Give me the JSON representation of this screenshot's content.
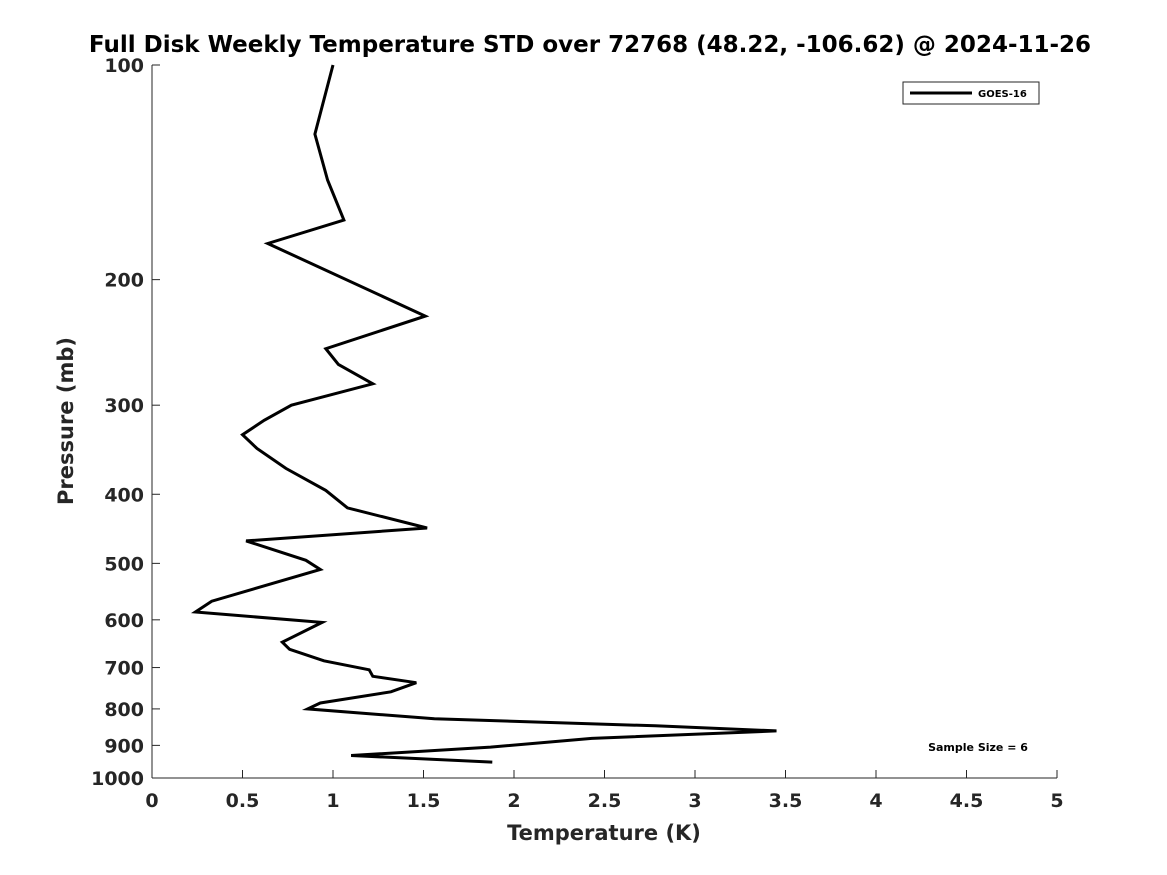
{
  "chart_data": {
    "type": "line",
    "title": "Full Disk Weekly Temperature STD over 72768 (48.22, -106.62) @ 2024-11-26",
    "xlabel": "Temperature (K)",
    "ylabel": "Pressure (mb)",
    "xlim": [
      0,
      5
    ],
    "ylim": [
      100,
      1000
    ],
    "y_scale": "log",
    "y_reversed": true,
    "grid": false,
    "legend_position": "top-right",
    "x_ticks": [
      0,
      0.5,
      1,
      1.5,
      2,
      2.5,
      3,
      3.5,
      4,
      4.5,
      5
    ],
    "x_tick_labels": [
      "0",
      "0.5",
      "1",
      "1.5",
      "2",
      "2.5",
      "3",
      "3.5",
      "4",
      "4.5",
      "5"
    ],
    "y_ticks": [
      100,
      200,
      300,
      400,
      500,
      600,
      700,
      800,
      900,
      1000
    ],
    "y_tick_labels": [
      "100",
      "200",
      "300",
      "400",
      "500",
      "600",
      "700",
      "800",
      "900",
      "1000"
    ],
    "series": [
      {
        "name": "GOES-16",
        "color": "#000000",
        "points": [
          [
            1.0,
            100
          ],
          [
            0.9,
            125
          ],
          [
            0.97,
            145
          ],
          [
            1.06,
            165
          ],
          [
            0.64,
            178
          ],
          [
            1.51,
            225
          ],
          [
            0.96,
            250
          ],
          [
            1.03,
            263
          ],
          [
            1.22,
            280
          ],
          [
            0.77,
            300
          ],
          [
            0.62,
            315
          ],
          [
            0.5,
            330
          ],
          [
            0.58,
            345
          ],
          [
            0.74,
            368
          ],
          [
            0.96,
            395
          ],
          [
            1.08,
            418
          ],
          [
            1.52,
            446
          ],
          [
            0.52,
            465
          ],
          [
            0.85,
            495
          ],
          [
            0.93,
            510
          ],
          [
            0.33,
            565
          ],
          [
            0.24,
            585
          ],
          [
            0.94,
            605
          ],
          [
            0.72,
            645
          ],
          [
            0.76,
            660
          ],
          [
            0.95,
            685
          ],
          [
            1.2,
            705
          ],
          [
            1.22,
            720
          ],
          [
            1.46,
            735
          ],
          [
            1.32,
            757
          ],
          [
            0.93,
            785
          ],
          [
            0.86,
            800
          ],
          [
            1.56,
            826
          ],
          [
            2.78,
            845
          ],
          [
            3.45,
            859
          ],
          [
            2.43,
            880
          ],
          [
            1.87,
            905
          ],
          [
            1.1,
            930
          ],
          [
            1.88,
            950
          ]
        ]
      }
    ],
    "annotations": [
      "Sample Size = 6"
    ]
  }
}
